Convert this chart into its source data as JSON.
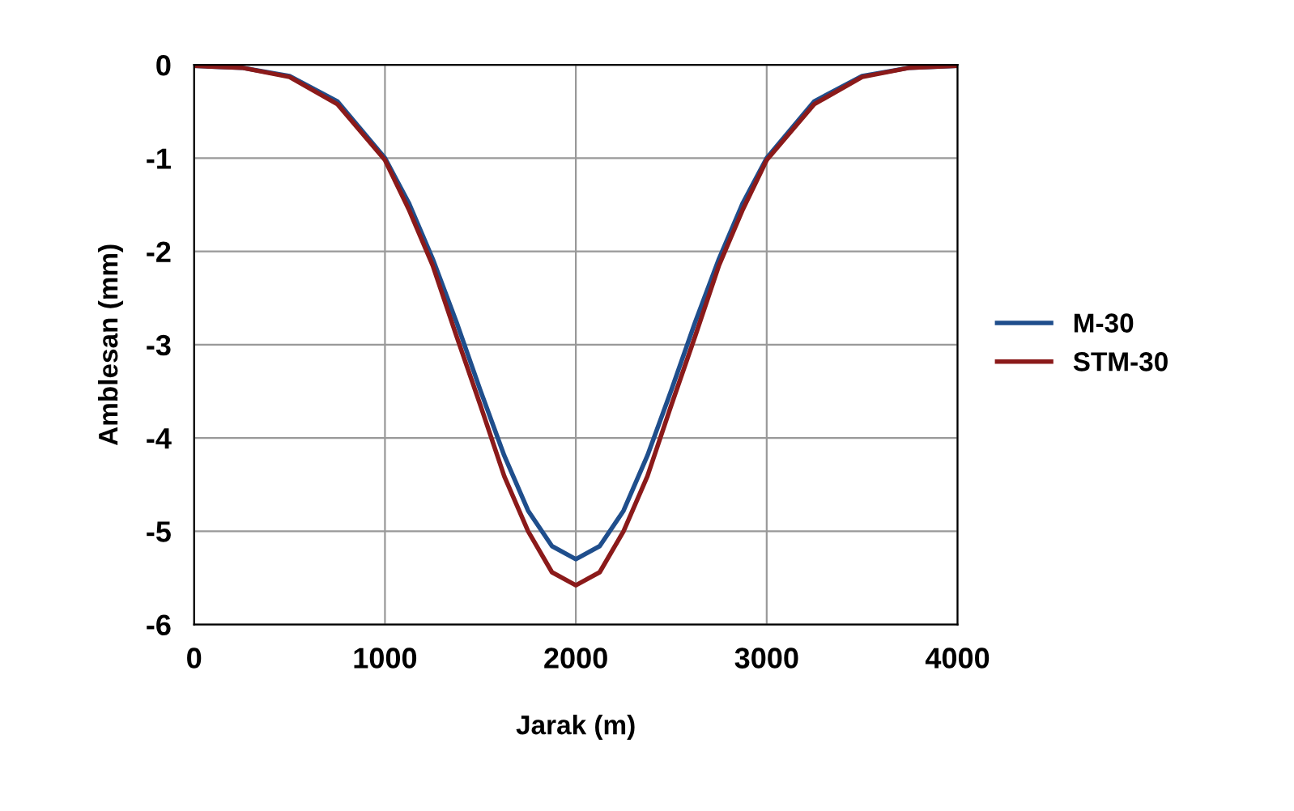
{
  "chart_data": {
    "type": "line",
    "xlabel": "Jarak (m)",
    "ylabel": "Amblesan (mm)",
    "x": [
      0,
      250,
      500,
      750,
      1000,
      1125,
      1250,
      1375,
      1500,
      1625,
      1750,
      1875,
      2000,
      2125,
      2250,
      2375,
      2500,
      2625,
      2750,
      2875,
      3000,
      3250,
      3500,
      3750,
      4000
    ],
    "series": [
      {
        "name": "M-30",
        "color": "#1f4e8c",
        "values": [
          -0.01,
          -0.03,
          -0.12,
          -0.39,
          -1.0,
          -1.48,
          -2.08,
          -2.76,
          -3.49,
          -4.19,
          -4.78,
          -5.16,
          -5.3,
          -5.16,
          -4.78,
          -4.19,
          -3.49,
          -2.76,
          -2.08,
          -1.48,
          -1.0,
          -0.39,
          -0.12,
          -0.03,
          -0.01
        ]
      },
      {
        "name": "STM-30",
        "color": "#8b1a1a",
        "values": [
          -0.01,
          -0.03,
          -0.13,
          -0.42,
          -1.02,
          -1.55,
          -2.15,
          -2.91,
          -3.65,
          -4.41,
          -5.0,
          -5.44,
          -5.58,
          -5.44,
          -5.0,
          -4.41,
          -3.65,
          -2.91,
          -2.15,
          -1.55,
          -1.02,
          -0.42,
          -0.13,
          -0.03,
          -0.01
        ]
      }
    ],
    "xlim": [
      0,
      4000
    ],
    "xticks": [
      0,
      1000,
      2000,
      3000,
      4000
    ],
    "ylim": [
      -6,
      0
    ],
    "yticks": [
      0,
      -1,
      -2,
      -3,
      -4,
      -5,
      -6
    ],
    "grid": true,
    "legend": "right",
    "marker": "none",
    "line_style": "solid"
  }
}
